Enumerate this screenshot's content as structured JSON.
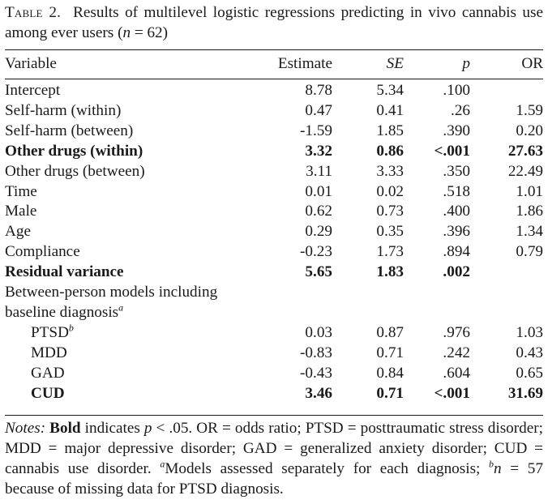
{
  "caption": {
    "label": "Table 2.",
    "text_a": "Results of multilevel logistic regressions predicting in vivo cannabis use among ever users (",
    "n_symbol": "n",
    "text_b": " = 62)"
  },
  "columns": {
    "variable": "Variable",
    "estimate": "Estimate",
    "se": "SE",
    "p": "p",
    "or": "OR"
  },
  "rows": [
    {
      "variable": "Intercept",
      "estimate": "8.78",
      "se": "5.34",
      "p": ".100",
      "or": ""
    },
    {
      "variable": "Self-harm (within)",
      "estimate": "0.47",
      "se": "0.41",
      "p": ".26",
      "or": "1.59"
    },
    {
      "variable": "Self-harm (between)",
      "estimate": "-1.59",
      "se": "1.85",
      "p": ".390",
      "or": "0.20"
    },
    {
      "variable": "Other drugs (within)",
      "estimate": "3.32",
      "se": "0.86",
      "p": "<.001",
      "or": "27.63"
    },
    {
      "variable": "Other drugs (between)",
      "estimate": "3.11",
      "se": "3.33",
      "p": ".350",
      "or": "22.49"
    },
    {
      "variable": "Time",
      "estimate": "0.01",
      "se": "0.02",
      "p": ".518",
      "or": "1.01"
    },
    {
      "variable": "Male",
      "estimate": "0.62",
      "se": "0.73",
      "p": ".400",
      "or": "1.86"
    },
    {
      "variable": "Age",
      "estimate": "0.29",
      "se": "0.35",
      "p": ".396",
      "or": "1.34"
    },
    {
      "variable": "Compliance",
      "estimate": "-0.23",
      "se": "1.73",
      "p": ".894",
      "or": "0.79"
    },
    {
      "variable": "Residual variance",
      "estimate": "5.65",
      "se": "1.83",
      "p": ".002",
      "or": ""
    }
  ],
  "subheading": {
    "line1": "Between-person models including",
    "line2": "baseline diagnosis",
    "sup": "a"
  },
  "diagnosis_rows": [
    {
      "variable": "PTSD",
      "sup": "b",
      "estimate": "0.03",
      "se": "0.87",
      "p": ".976",
      "or": "1.03"
    },
    {
      "variable": "MDD",
      "sup": "",
      "estimate": "-0.83",
      "se": "0.71",
      "p": ".242",
      "or": "0.43"
    },
    {
      "variable": "GAD",
      "sup": "",
      "estimate": "-0.43",
      "se": "0.84",
      "p": ".604",
      "or": "0.65"
    },
    {
      "variable": "CUD",
      "sup": "",
      "estimate": "3.46",
      "se": "0.71",
      "p": "<.001",
      "or": "31.69"
    }
  ],
  "notes": {
    "label": "Notes:",
    "bold_word": "Bold",
    "t1": " indicates ",
    "p_symbol": "p",
    "t2": " < .05. OR = odds ratio; PTSD = posttraumatic stress disorder; MDD = major depressive disorder; GAD = generalized anxiety disorder; CUD = cannabis use disorder. ",
    "sup_a": "a",
    "t3": "Models assessed separately for each diagnosis; ",
    "sup_b": "b",
    "n_symbol": "n",
    "t4": " = 57 because of missing data for PTSD diagnosis."
  }
}
